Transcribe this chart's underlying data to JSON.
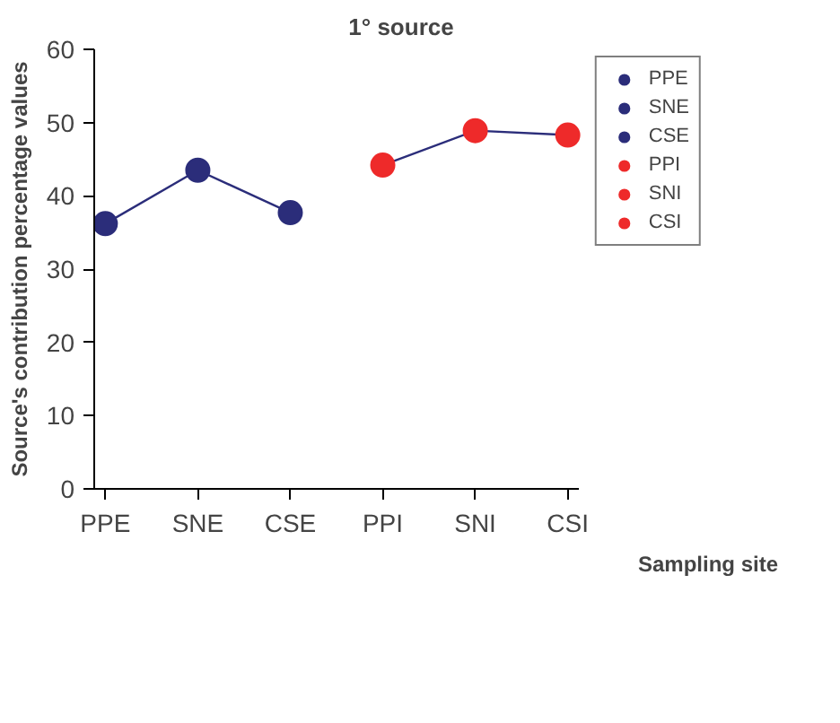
{
  "chart_data": {
    "type": "scatter",
    "title": "1° source",
    "xlabel": "Sampling site",
    "ylabel": "Source's contribution percentage values",
    "categories": [
      "PPE",
      "SNE",
      "CSE",
      "PPI",
      "SNI",
      "CSI"
    ],
    "ylim": [
      0,
      60
    ],
    "yticks": [
      0,
      10,
      20,
      30,
      40,
      50,
      60
    ],
    "grid": false,
    "legend": "right",
    "marker": "circle",
    "series": [
      {
        "type": "line",
        "color": "#2b2d7a",
        "marker": "none",
        "values": [
          36.2,
          43.5,
          37.7,
          null,
          null,
          null
        ]
      },
      {
        "type": "line",
        "color": "#2b2d7a",
        "marker": "none",
        "values": [
          null,
          null,
          null,
          44.2,
          48.9,
          48.3
        ]
      },
      {
        "name": "PPE",
        "color": "#2b2d7a",
        "values": [
          36.2,
          null,
          null,
          null,
          null,
          null
        ]
      },
      {
        "name": "SNE",
        "color": "#2b2d7a",
        "values": [
          null,
          43.5,
          null,
          null,
          null,
          null
        ]
      },
      {
        "name": "CSE",
        "color": "#2b2d7a",
        "values": [
          null,
          null,
          37.7,
          null,
          null,
          null
        ]
      },
      {
        "name": "PPI",
        "color": "#ee2a2a",
        "values": [
          null,
          null,
          null,
          44.2,
          null,
          null
        ]
      },
      {
        "name": "SNI",
        "color": "#ee2a2a",
        "values": [
          null,
          null,
          null,
          null,
          48.9,
          null
        ]
      },
      {
        "name": "CSI",
        "color": "#ee2a2a",
        "values": [
          null,
          null,
          null,
          null,
          null,
          48.3
        ]
      }
    ]
  }
}
